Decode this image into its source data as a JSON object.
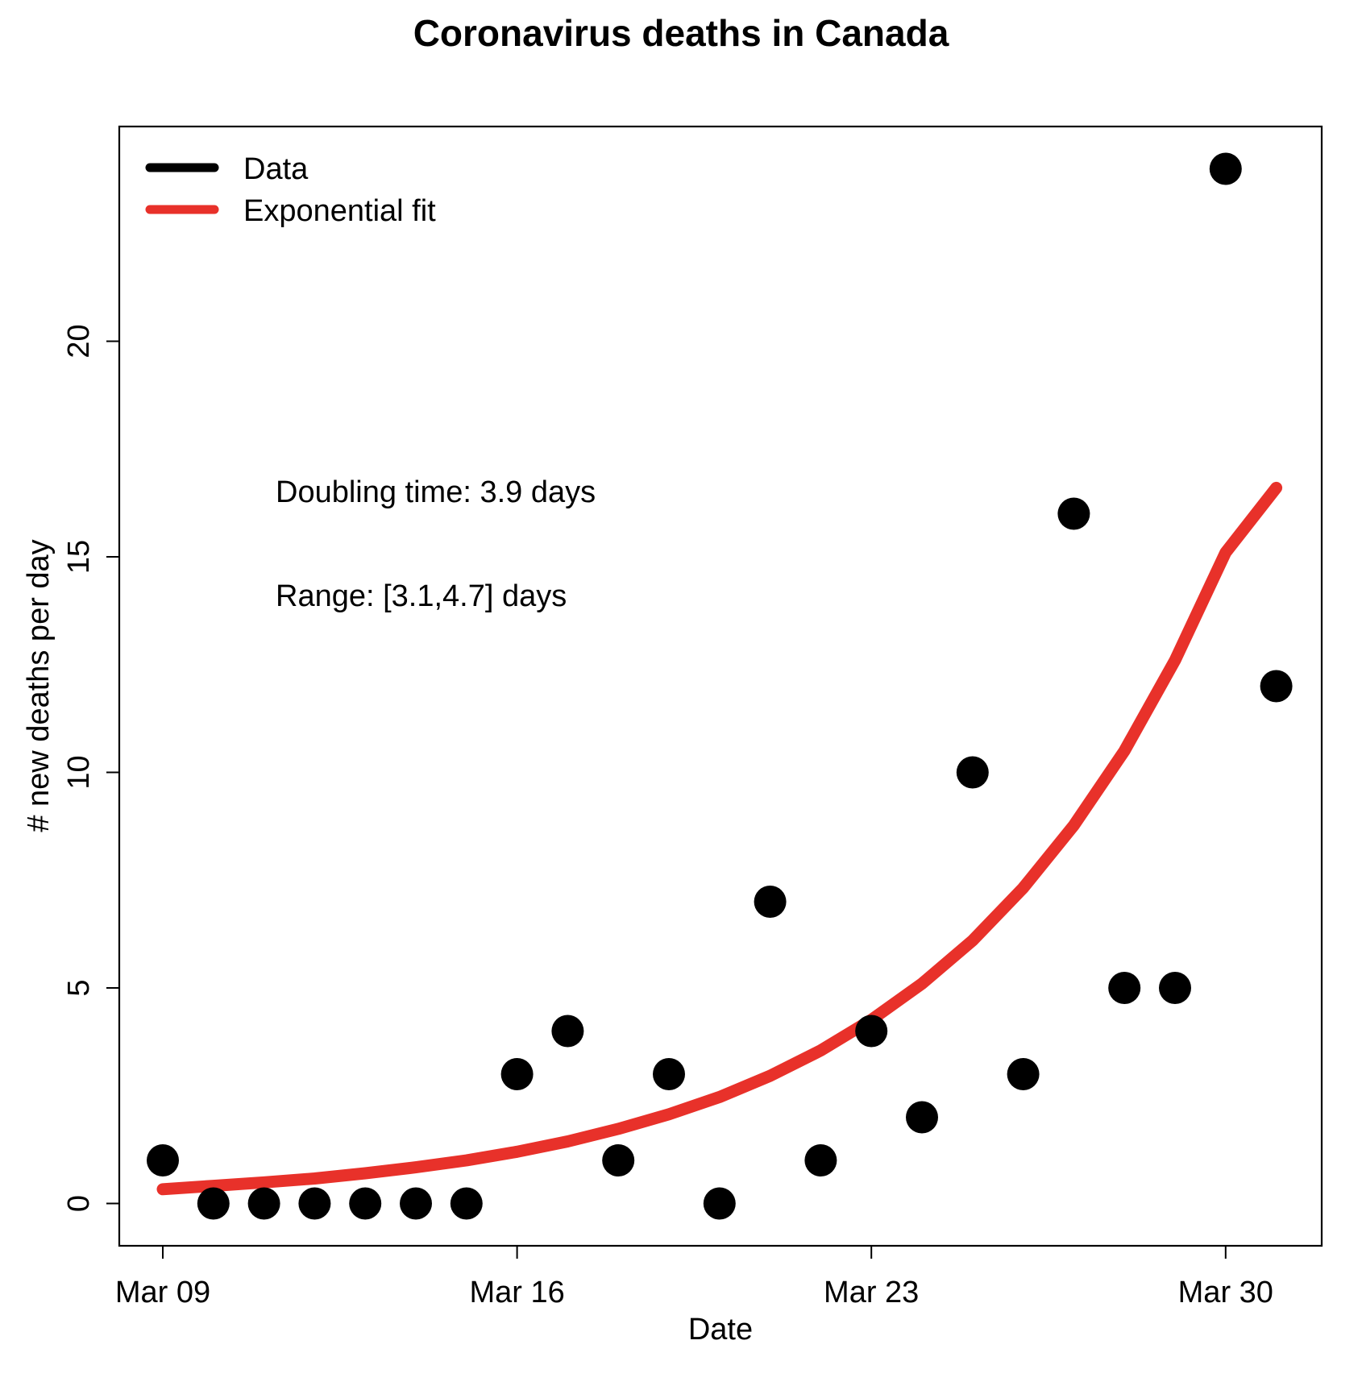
{
  "chart_data": {
    "type": "scatter",
    "title": "Coronavirus deaths in Canada",
    "xlabel": "Date",
    "ylabel": "# new deaths per day",
    "x_ticks": [
      "Mar 09",
      "Mar 16",
      "Mar 23",
      "Mar 30"
    ],
    "y_ticks": [
      0,
      5,
      10,
      15,
      20
    ],
    "xlim": [
      "Mar 08",
      "Mar 31"
    ],
    "ylim": [
      -1,
      25
    ],
    "grid": false,
    "legend_position": "top-left",
    "legend": [
      {
        "label": "Data",
        "color": "#000000"
      },
      {
        "label": "Exponential fit",
        "color": "#e8312a"
      }
    ],
    "annotations": [
      "Doubling time: 3.9 days",
      "Range: [3.1,4.7] days"
    ],
    "series": [
      {
        "name": "Data",
        "type": "scatter",
        "color": "#000000",
        "x": [
          "Mar 09",
          "Mar 10",
          "Mar 11",
          "Mar 12",
          "Mar 13",
          "Mar 14",
          "Mar 15",
          "Mar 16",
          "Mar 17",
          "Mar 18",
          "Mar 19",
          "Mar 20",
          "Mar 21",
          "Mar 22",
          "Mar 23",
          "Mar 24",
          "Mar 25",
          "Mar 26",
          "Mar 27",
          "Mar 28",
          "Mar 29",
          "Mar 30",
          "Mar 31"
        ],
        "y": [
          1,
          0,
          0,
          0,
          0,
          0,
          0,
          3,
          4,
          1,
          3,
          0,
          7,
          1,
          4,
          2,
          10,
          3,
          16,
          5,
          5,
          24,
          12
        ]
      },
      {
        "name": "Exponential fit",
        "type": "line",
        "color": "#e8312a",
        "x": [
          "Mar 09",
          "Mar 10",
          "Mar 11",
          "Mar 12",
          "Mar 13",
          "Mar 14",
          "Mar 15",
          "Mar 16",
          "Mar 17",
          "Mar 18",
          "Mar 19",
          "Mar 20",
          "Mar 21",
          "Mar 22",
          "Mar 23",
          "Mar 24",
          "Mar 25",
          "Mar 26",
          "Mar 27",
          "Mar 28",
          "Mar 29",
          "Mar 30",
          "Mar 31"
        ],
        "y": [
          0.33,
          0.41,
          0.49,
          0.58,
          0.7,
          0.84,
          1.0,
          1.2,
          1.44,
          1.73,
          2.07,
          2.47,
          2.96,
          3.55,
          4.26,
          5.1,
          6.1,
          7.32,
          8.77,
          10.5,
          12.6,
          15.1,
          16.6
        ]
      }
    ]
  }
}
